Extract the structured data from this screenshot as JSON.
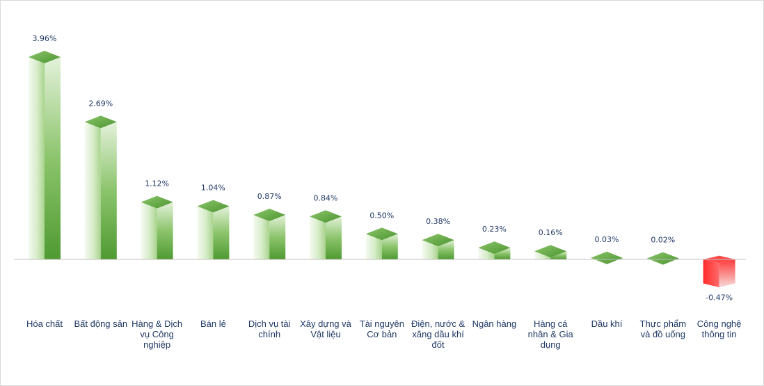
{
  "chart_data": {
    "type": "bar",
    "categories": [
      "Hóa chất",
      "Bất động sản",
      "Hàng & Dịch vụ Công nghiệp",
      "Bán lẻ",
      "Dịch vụ tài chính",
      "Xây dựng và Vật liệu",
      "Tài nguyên Cơ bản",
      "Điện, nước & xăng dầu khí đốt",
      "Ngân hàng",
      "Hàng cá nhân & Gia dụng",
      "Dầu khí",
      "Thực phẩm và đồ uống",
      "Công nghệ thông tin"
    ],
    "category_lines": [
      [
        "Hóa chất"
      ],
      [
        "Bất động sản"
      ],
      [
        "Hàng & Dịch",
        "vụ Công",
        "nghiệp"
      ],
      [
        "Bán lẻ"
      ],
      [
        "Dịch vụ tài",
        "chính"
      ],
      [
        "Xây dựng và",
        "Vật liệu"
      ],
      [
        "Tài nguyên",
        "Cơ bản"
      ],
      [
        "Điện, nước &",
        "xăng dầu khí",
        "đốt"
      ],
      [
        "Ngân hàng"
      ],
      [
        "Hàng cá",
        "nhân & Gia",
        "dụng"
      ],
      [
        "Dầu khí"
      ],
      [
        "Thực phẩm",
        "và đồ uống"
      ],
      [
        "Công nghệ",
        "thông tin"
      ]
    ],
    "values": [
      3.96,
      2.69,
      1.12,
      1.04,
      0.87,
      0.84,
      0.5,
      0.38,
      0.23,
      0.16,
      0.03,
      0.02,
      -0.47
    ],
    "data_labels": [
      "3.96%",
      "2.69%",
      "1.12%",
      "1.04%",
      "0.87%",
      "0.84%",
      "0.50%",
      "0.38%",
      "0.23%",
      "0.16%",
      "0.03%",
      "0.02%",
      "-0.47%"
    ],
    "title": "",
    "xlabel": "",
    "ylabel": "",
    "ylim": [
      -0.47,
      3.96
    ],
    "grid": false,
    "legend": "none",
    "style": "3d-column",
    "colors": {
      "positive": "#5aa83a",
      "positive_light": "#eef7e8",
      "negative": "#ff1f1f",
      "negative_light": "#fbe2e2",
      "label": "#1f3864",
      "baseline": "#bfbfbf"
    }
  }
}
